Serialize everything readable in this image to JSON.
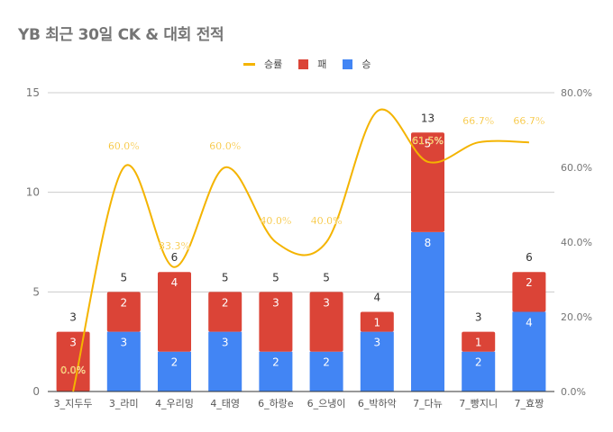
{
  "chart_data": {
    "type": "bar",
    "title": "YB 최근 30일 CK & 대회 전적",
    "categories": [
      "3_지두두",
      "3_라미",
      "4_우리밍",
      "4_태영",
      "6_하랑e",
      "6_으냉이",
      "6_박하악",
      "7_다뉴",
      "7_빵지니",
      "7_효짱"
    ],
    "series": [
      {
        "name": "승",
        "stack": true,
        "color": "#4285f4",
        "values": [
          0,
          3,
          2,
          3,
          2,
          2,
          3,
          8,
          2,
          4
        ]
      },
      {
        "name": "패",
        "stack": true,
        "color": "#db4437",
        "values": [
          3,
          2,
          4,
          2,
          3,
          3,
          1,
          5,
          1,
          2
        ]
      },
      {
        "name": "승률",
        "type": "line",
        "axis": "right",
        "color": "#f4b400",
        "values": [
          0.0,
          60.0,
          33.3,
          60.0,
          40.0,
          40.0,
          75.0,
          61.5,
          66.7,
          66.7
        ],
        "labels": [
          "0.0%",
          "60.0%",
          "33.3%",
          "60.0%",
          "40.0%",
          "40.0%",
          "",
          "61.5%",
          "66.7%",
          "66.7%"
        ]
      }
    ],
    "totals": [
      3,
      5,
      6,
      5,
      5,
      5,
      4,
      13,
      3,
      6
    ],
    "legend": [
      "승률",
      "패",
      "승"
    ],
    "legend_position": "top-right",
    "ylim": [
      0,
      15
    ],
    "yticks": [
      "0",
      "5",
      "10",
      "15"
    ],
    "y2lim": [
      0,
      80
    ],
    "y2ticks": [
      "0.0%",
      "20.0%",
      "40.0%",
      "60.0%",
      "80.0%"
    ],
    "xlabel": "",
    "ylabel": "",
    "grid": true
  }
}
